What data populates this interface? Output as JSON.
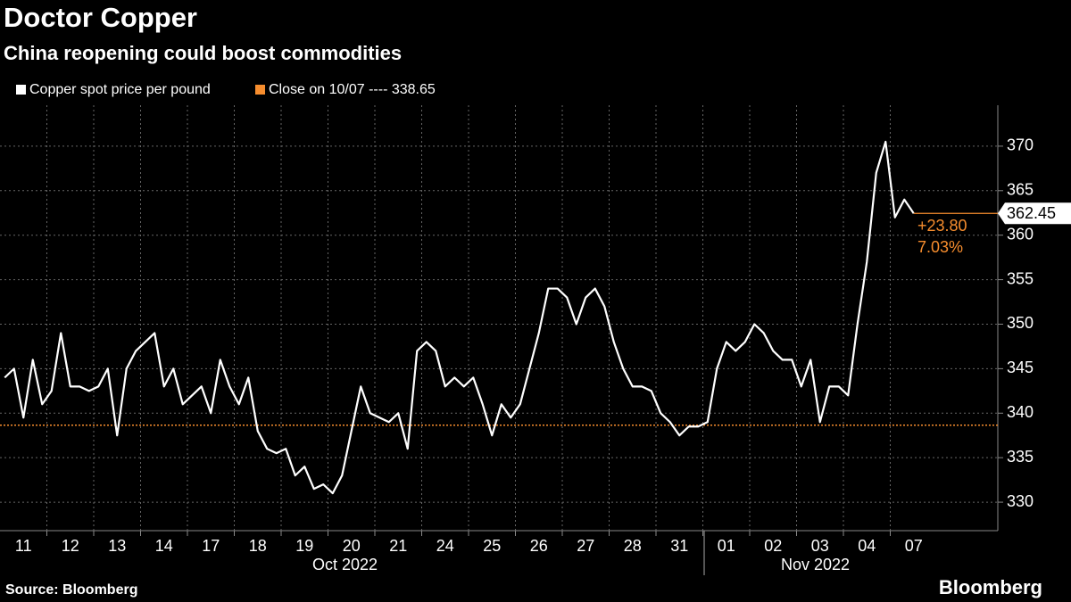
{
  "chart_data": {
    "type": "line",
    "title": "Doctor Copper",
    "subtitle": "China reopening could boost commodities",
    "categories": [
      null,
      null,
      "11",
      null,
      null,
      null,
      null,
      "12",
      null,
      null,
      null,
      null,
      "13",
      null,
      null,
      null,
      null,
      "14",
      null,
      null,
      null,
      null,
      "17",
      null,
      null,
      null,
      null,
      "18",
      null,
      null,
      null,
      null,
      "19",
      null,
      null,
      null,
      null,
      "20",
      null,
      null,
      null,
      null,
      "21",
      null,
      null,
      null,
      null,
      "24",
      null,
      null,
      null,
      null,
      "25",
      null,
      null,
      null,
      null,
      "26",
      null,
      null,
      null,
      null,
      "27",
      null,
      null,
      null,
      null,
      "28",
      null,
      null,
      null,
      null,
      "31",
      null,
      null,
      null,
      null,
      "01",
      null,
      null,
      null,
      null,
      "02",
      null,
      null,
      null,
      null,
      "03",
      null,
      null,
      null,
      null,
      "04",
      null,
      null,
      null,
      null,
      "07"
    ],
    "month_labels": [
      "Oct 2022",
      "Nov 2022"
    ],
    "series": [
      {
        "name": "Copper spot price per pound",
        "color": "#ffffff",
        "values": [
          344,
          345,
          339.5,
          346,
          341,
          342.5,
          349,
          343,
          343,
          342.5,
          343,
          345,
          337.5,
          345,
          347,
          348,
          349,
          343,
          345,
          341,
          342,
          343,
          340,
          346,
          343,
          341,
          344,
          338,
          336,
          335.5,
          336,
          333,
          334,
          331.5,
          332,
          331,
          333,
          338,
          343,
          340,
          339.5,
          339,
          340,
          336,
          347,
          348,
          347,
          343,
          344,
          343,
          344,
          341,
          337.5,
          341,
          339.5,
          341,
          345,
          349,
          354,
          354,
          353,
          350,
          353,
          354,
          352,
          348,
          345,
          343,
          343,
          342.5,
          340,
          339,
          337.5,
          338.5,
          338.5,
          339,
          345,
          348,
          347,
          348,
          350,
          349,
          347,
          346,
          346,
          343,
          346,
          339,
          343,
          343,
          342,
          350,
          357,
          367,
          370.5,
          362,
          364,
          362.45
        ]
      }
    ],
    "reference": {
      "name": "Close on 10/07 ---- 338.65",
      "value": 338.65,
      "color": "#f68d2e"
    },
    "annotations": [
      "+23.80",
      "7.03%"
    ],
    "ylim": [
      326.8,
      374.6
    ],
    "yticks": [
      330,
      335,
      340,
      345,
      350,
      355,
      360,
      365,
      370
    ],
    "grid": true,
    "source": "Source: Bloomberg",
    "logo": "Bloomberg"
  }
}
